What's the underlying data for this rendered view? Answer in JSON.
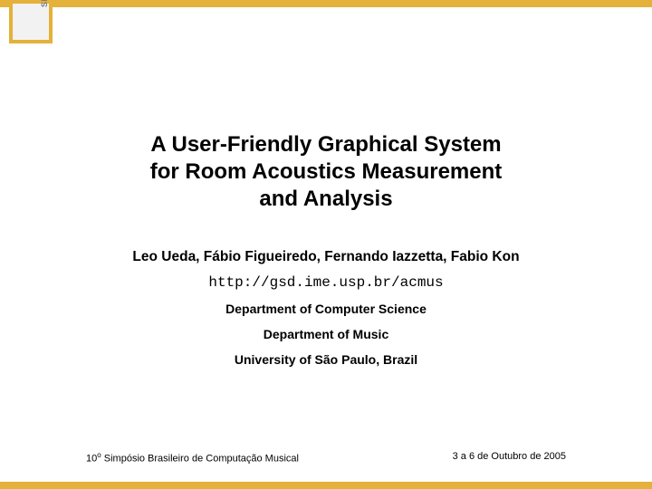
{
  "colors": {
    "accent": "#e4b13a",
    "corner_gray": "#9c9c9c",
    "corner_light": "#f2f2f2",
    "text": "#000000",
    "corner_text": "#7a7a7a"
  },
  "corner_label": "SBCM",
  "title_line1": "A User-Friendly Graphical System",
  "title_line2": "for Room Acoustics Measurement",
  "title_line3": "and Analysis",
  "authors": "Leo Ueda, Fábio Figueiredo, Fernando Iazzetta, Fabio Kon",
  "url": "http://gsd.ime.usp.br/acmus",
  "dept1": "Department of Computer Science",
  "dept2": "Department of Music",
  "university": "University of São Paulo,  Brazil",
  "footer_left_pre": "10",
  "footer_left_sup": "o",
  "footer_left_post": " Simpósio Brasileiro de Computação Musical",
  "footer_right": "3 a 6 de Outubro de 2005",
  "typography": {
    "title_fontsize": 24,
    "authors_fontsize": 15.5,
    "url_fontsize": 16,
    "dept_fontsize": 14,
    "footer_fontsize": 11
  }
}
